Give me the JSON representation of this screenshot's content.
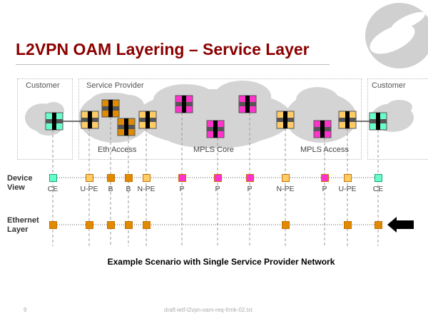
{
  "title": "L2VPN OAM Layering – Service Layer",
  "regions": {
    "customer_left": "Customer",
    "provider": "Service Provider",
    "customer_right": "Customer"
  },
  "clouds": {
    "eth_access": "Eth Access",
    "mpls_core": "MPLS Core",
    "mpls_access": "MPLS Access"
  },
  "rows": {
    "device_view": [
      "Device",
      "View"
    ],
    "ethernet_layer": [
      "Ethernet",
      "Layer"
    ]
  },
  "device_view": [
    {
      "label": "CE",
      "type": "ce"
    },
    {
      "label": "U-PE",
      "type": "pe"
    },
    {
      "label": "B",
      "type": "b"
    },
    {
      "label": "B",
      "type": "b"
    },
    {
      "label": "N-PE",
      "type": "pe"
    },
    {
      "label": "P",
      "type": "p"
    },
    {
      "label": "P",
      "type": "p"
    },
    {
      "label": "P",
      "type": "p"
    },
    {
      "label": "N-PE",
      "type": "pe"
    },
    {
      "label": "P",
      "type": "p"
    },
    {
      "label": "U-PE",
      "type": "pe"
    },
    {
      "label": "CE",
      "type": "ce"
    }
  ],
  "ethernet_layer_points": [
    0,
    1,
    2,
    3,
    4,
    8,
    10,
    11
  ],
  "colors": {
    "ce": "#66ffcc",
    "pe": "#ffcc66",
    "b": "#e08a00",
    "p": "#ff33cc",
    "title": "#8b0000"
  },
  "caption": "Example Scenario with Single Service Provider Network",
  "footer": {
    "page": "9",
    "file": "draft-ietf-l2vpn-oam-req-frmk-02.txt"
  }
}
